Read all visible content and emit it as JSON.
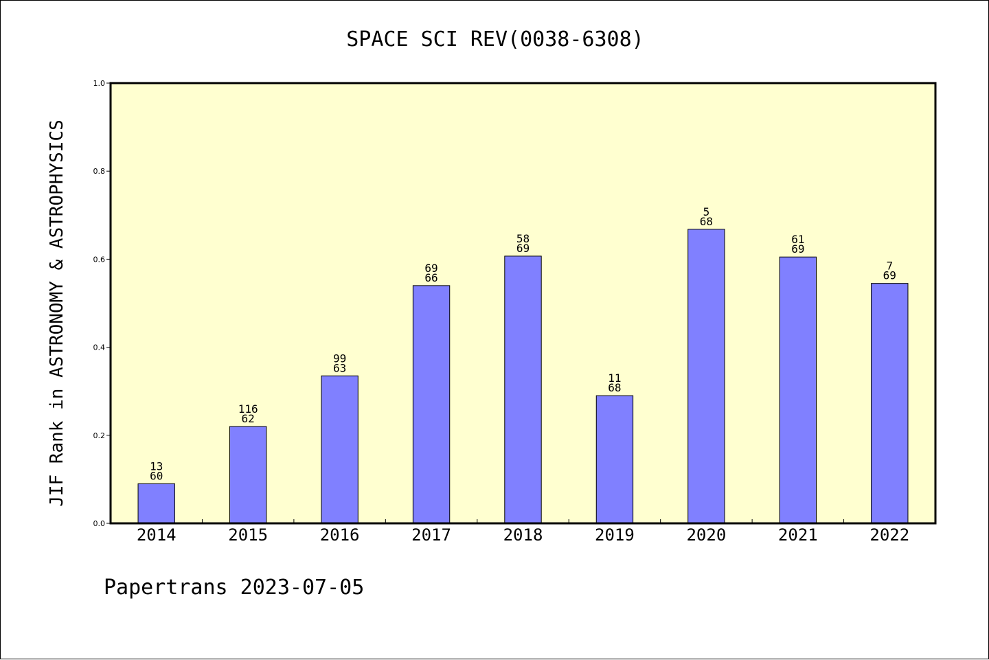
{
  "footer": "Papertrans 2023-07-05",
  "colors": {
    "plot_background": "#ffffd0",
    "bar_fill": "#8080ff",
    "bar_stroke": "#000000"
  },
  "chart_data": {
    "type": "bar",
    "title": "SPACE SCI REV(0038-6308)",
    "xlabel": "",
    "ylabel": "JIF Rank in ASTRONOMY & ASTROPHYSICS",
    "ylim": [
      0,
      1.0
    ],
    "yticks": [
      "0.0",
      "0.2",
      "0.4",
      "0.6",
      "0.8",
      "1.0"
    ],
    "grid": false,
    "categories": [
      "2014",
      "2015",
      "2016",
      "2017",
      "2018",
      "2019",
      "2020",
      "2021",
      "2022"
    ],
    "values": [
      0.09,
      0.22,
      0.335,
      0.54,
      0.607,
      0.29,
      0.668,
      0.605,
      0.545
    ],
    "annotations": [
      [
        "13",
        "60"
      ],
      [
        "116",
        "62"
      ],
      [
        "99",
        "63"
      ],
      [
        "69",
        "66"
      ],
      [
        "58",
        "69"
      ],
      [
        "11",
        "68"
      ],
      [
        "5",
        "68"
      ],
      [
        "61",
        "69"
      ],
      [
        "7",
        "69"
      ]
    ]
  }
}
